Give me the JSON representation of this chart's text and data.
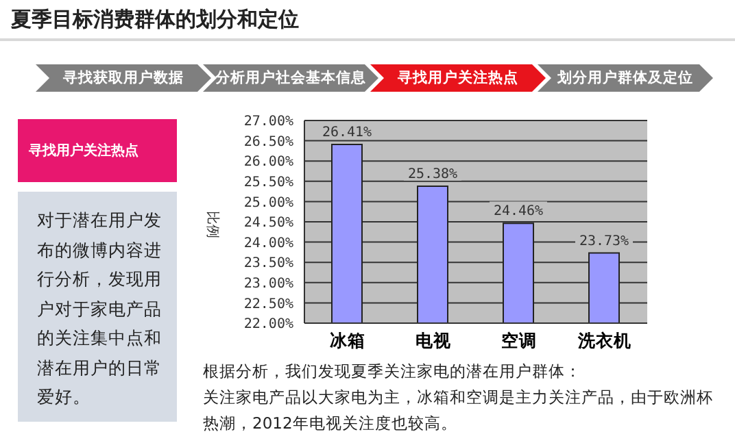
{
  "chart_data": {
    "type": "bar",
    "title": "夏季目标消费群体的划分和定位",
    "ylabel": "比例",
    "categories": [
      "冰箱",
      "电视",
      "空调",
      "洗衣机"
    ],
    "values": [
      26.41,
      25.38,
      24.46,
      23.73
    ],
    "value_labels": [
      "26.41%",
      "25.38%",
      "24.46%",
      "23.73%"
    ],
    "color": "#9999ff",
    "ylim": [
      22,
      27
    ],
    "yticks": [
      {
        "value": 22,
        "label": "22.00%"
      },
      {
        "value": 22.5,
        "label": "22.50%"
      },
      {
        "value": 23,
        "label": "23.00%"
      },
      {
        "value": 23.5,
        "label": "23.50%"
      },
      {
        "value": 24,
        "label": "24.00%"
      },
      {
        "value": 24.5,
        "label": "24.50%"
      },
      {
        "value": 25,
        "label": "25.00%"
      },
      {
        "value": 25.5,
        "label": "25.50%"
      },
      {
        "value": 26,
        "label": "26.00%"
      },
      {
        "value": 26.5,
        "label": "26.50%"
      },
      {
        "value": 27,
        "label": "27.00%"
      }
    ],
    "grid": "y",
    "annotations": [
      "寻找获取用户数据",
      "分析用户社会基本信息",
      "寻找用户关注热点",
      "划分用户群体及定位",
      "寻找用户关注热点",
      "对于潜在用户发布的微博内容进行分析，发现用户对于家电产品的关注集中点和潜在用户的日常爱好。",
      "根据分析，我们发现夏季关注家电的潜在用户群体：",
      "关注家电产品以大家电为主，冰箱和空调是主力关注产品，由于欧洲杯热潮，2012年电视关注度也较高。"
    ]
  }
}
